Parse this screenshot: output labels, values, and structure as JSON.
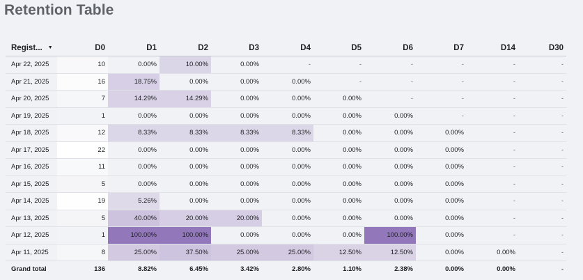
{
  "title": "Retention Table",
  "columns": [
    "Regist...",
    "D0",
    "D1",
    "D2",
    "D3",
    "D4",
    "D5",
    "D6",
    "D7",
    "D14",
    "D30"
  ],
  "rows": [
    {
      "date": "Apr 22, 2025",
      "cells": [
        "10",
        "0.00%",
        "10.00%",
        "0.00%",
        "-",
        "-",
        "-",
        "-",
        "-",
        "-"
      ]
    },
    {
      "date": "Apr 21, 2025",
      "cells": [
        "16",
        "18.75%",
        "0.00%",
        "0.00%",
        "0.00%",
        "-",
        "-",
        "-",
        "-",
        "-"
      ]
    },
    {
      "date": "Apr 20, 2025",
      "cells": [
        "7",
        "14.29%",
        "14.29%",
        "0.00%",
        "0.00%",
        "0.00%",
        "-",
        "-",
        "-",
        "-"
      ]
    },
    {
      "date": "Apr 19, 2025",
      "cells": [
        "1",
        "0.00%",
        "0.00%",
        "0.00%",
        "0.00%",
        "0.00%",
        "0.00%",
        "-",
        "-",
        "-"
      ]
    },
    {
      "date": "Apr 18, 2025",
      "cells": [
        "12",
        "8.33%",
        "8.33%",
        "8.33%",
        "8.33%",
        "0.00%",
        "0.00%",
        "0.00%",
        "-",
        "-"
      ]
    },
    {
      "date": "Apr 17, 2025",
      "cells": [
        "22",
        "0.00%",
        "0.00%",
        "0.00%",
        "0.00%",
        "0.00%",
        "0.00%",
        "0.00%",
        "-",
        "-"
      ]
    },
    {
      "date": "Apr 16, 2025",
      "cells": [
        "11",
        "0.00%",
        "0.00%",
        "0.00%",
        "0.00%",
        "0.00%",
        "0.00%",
        "0.00%",
        "-",
        "-"
      ]
    },
    {
      "date": "Apr 15, 2025",
      "cells": [
        "5",
        "0.00%",
        "0.00%",
        "0.00%",
        "0.00%",
        "0.00%",
        "0.00%",
        "0.00%",
        "-",
        "-"
      ]
    },
    {
      "date": "Apr 14, 2025",
      "cells": [
        "19",
        "5.26%",
        "0.00%",
        "0.00%",
        "0.00%",
        "0.00%",
        "0.00%",
        "0.00%",
        "-",
        "-"
      ]
    },
    {
      "date": "Apr 13, 2025",
      "cells": [
        "5",
        "40.00%",
        "20.00%",
        "20.00%",
        "0.00%",
        "0.00%",
        "0.00%",
        "0.00%",
        "-",
        "-"
      ]
    },
    {
      "date": "Apr 12, 2025",
      "cells": [
        "1",
        "100.00%",
        "100.00%",
        "0.00%",
        "0.00%",
        "0.00%",
        "100.00%",
        "0.00%",
        "-",
        "-"
      ]
    },
    {
      "date": "Apr 11, 2025",
      "cells": [
        "8",
        "25.00%",
        "37.50%",
        "25.00%",
        "25.00%",
        "12.50%",
        "12.50%",
        "0.00%",
        "0.00%",
        "-"
      ]
    }
  ],
  "grand_total": {
    "label": "Grand total",
    "cells": [
      "136",
      "8.82%",
      "6.45%",
      "3.42%",
      "2.80%",
      "1.10%",
      "2.38%",
      "0.00%",
      "0.00%",
      "-"
    ]
  },
  "colors": {
    "heat_base": "#9a82bd",
    "d0_base": "#ffffff"
  }
}
